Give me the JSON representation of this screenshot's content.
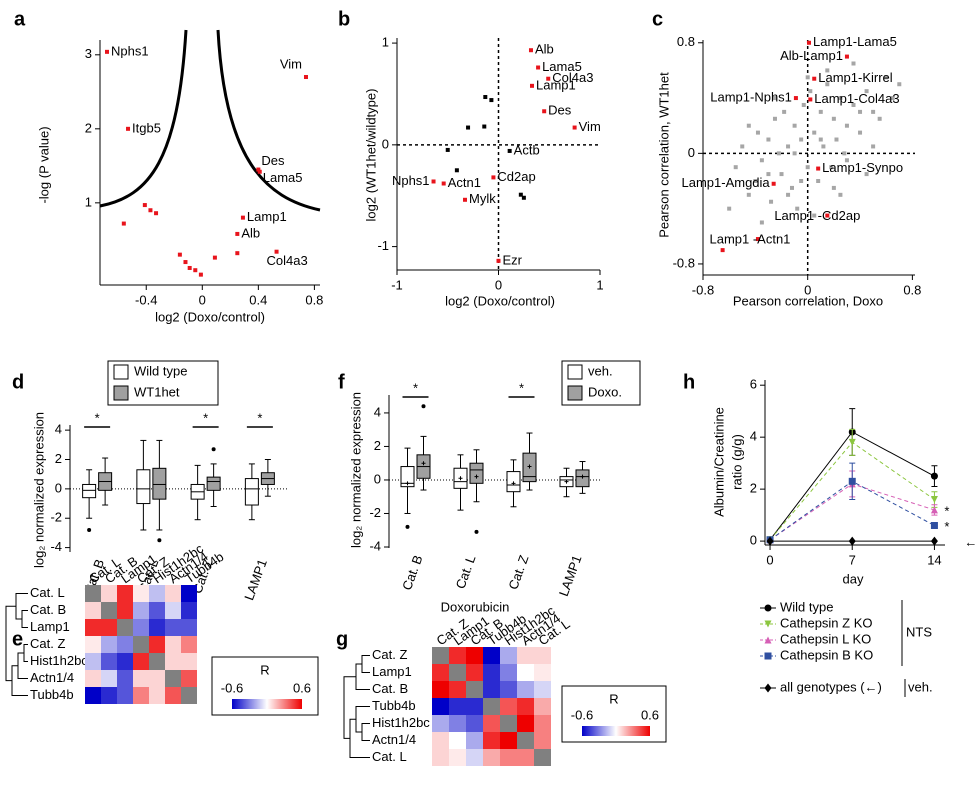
{
  "chart_data": [
    {
      "panel": "a",
      "type": "scatter",
      "xlabel": "log2 (Doxo/control)",
      "ylabel": "-log (P value)",
      "xlim": [
        -0.73,
        0.84
      ],
      "ylim": [
        -0.11,
        3.2
      ],
      "xticks": [
        -0.4,
        0,
        0.4,
        0.8
      ],
      "yticks": [
        1,
        2,
        3
      ],
      "threshold_curve": true,
      "series": [
        {
          "color": "#e8141c",
          "x": [
            -0.68,
            -0.53,
            0.74,
            0.4,
            0.41,
            0.29,
            0.25,
            0.53,
            -0.56,
            -0.41,
            -0.37,
            -0.33,
            -0.16,
            -0.12,
            -0.09,
            -0.05,
            -0.01,
            0.09,
            0.25
          ],
          "values": [
            3.04,
            2.0,
            2.7,
            1.45,
            1.42,
            0.8,
            0.58,
            0.34,
            0.72,
            0.97,
            0.9,
            0.86,
            0.3,
            0.2,
            0.12,
            0.09,
            0.03,
            0.26,
            0.32
          ],
          "labels": [
            "Nphs1",
            "Itgb5",
            "Vim",
            "Des",
            "Lama5",
            "Lamp1",
            "Alb",
            "Col4a3",
            null,
            null,
            null,
            null,
            null,
            null,
            null,
            null,
            null,
            null,
            null
          ]
        }
      ]
    },
    {
      "panel": "b",
      "type": "scatter",
      "xlabel": "log2 (Doxo/control)",
      "ylabel": "log2 (WT1het/wildtype)",
      "xlim": [
        -1,
        1
      ],
      "ylim": [
        -1.23,
        1.05
      ],
      "xticks": [
        -1,
        0,
        1
      ],
      "yticks": [
        -1,
        0,
        1
      ],
      "crosshair": true,
      "series": [
        {
          "color": "#e8141c",
          "x": [
            0.32,
            0.39,
            0.49,
            0.33,
            0.45,
            0.75,
            -0.05,
            -0.64,
            -0.54,
            -0.33,
            0
          ],
          "values": [
            0.93,
            0.76,
            0.65,
            0.58,
            0.33,
            0.17,
            -0.32,
            -0.36,
            -0.38,
            -0.54,
            -1.14
          ],
          "labels": [
            "Alb",
            "Lama5",
            "Col4a3",
            "Lamp1",
            "Des",
            "Vim",
            "Cd2ap",
            "Nphs1",
            "Actn1",
            "Mylk",
            "Ezr"
          ]
        },
        {
          "color": "#000000",
          "x": [
            0.11,
            -0.13,
            -0.07,
            -0.14,
            -0.3,
            -0.5,
            -0.41,
            0.22,
            0.25
          ],
          "values": [
            -0.06,
            0.47,
            0.44,
            0.18,
            0.17,
            -0.05,
            -0.25,
            -0.49,
            -0.52
          ],
          "labels": [
            "Actb",
            null,
            null,
            null,
            null,
            null,
            null,
            null,
            null
          ]
        }
      ]
    },
    {
      "panel": "c",
      "type": "scatter",
      "xlabel": "Pearson correlation, Doxo",
      "ylabel": "Pearson correlation, WT1het",
      "xlim": [
        -0.8,
        0.82
      ],
      "ylim": [
        -0.88,
        0.82
      ],
      "xticks": [
        -0.8,
        0,
        0.8
      ],
      "yticks": [
        -0.8,
        0,
        0.8
      ],
      "crosshair": true,
      "series": [
        {
          "color": "#a6a6a6",
          "x": [
            -0.55,
            -0.5,
            -0.45,
            -0.4,
            -0.38,
            -0.35,
            -0.3,
            -0.28,
            -0.25,
            -0.22,
            -0.2,
            -0.18,
            -0.15,
            -0.12,
            -0.1,
            -0.08,
            -0.05,
            -0.03,
            0,
            0.02,
            0.05,
            0.08,
            0.1,
            0.12,
            0.15,
            0.18,
            0.2,
            0.22,
            0.25,
            0.28,
            0.3,
            0.35,
            0.4,
            0.45,
            0.5,
            0.55,
            0.6,
            0.65,
            -0.6,
            -0.35,
            -0.15,
            0.05,
            0.25,
            0.45,
            -0.25,
            0.0,
            0.15,
            0.35,
            0.7,
            -0.45,
            -0.05,
            0.1,
            0.3,
            0.5,
            -0.3,
            -0.1,
            0.2,
            0.4
          ],
          "values": [
            -0.1,
            0.05,
            -0.3,
            -0.2,
            0.15,
            -0.05,
            0.1,
            -0.35,
            0.25,
            0.0,
            -0.15,
            0.3,
            0.05,
            -0.25,
            0.2,
            -0.4,
            0.1,
            0.35,
            -0.1,
            0.45,
            0.15,
            -0.2,
            0.3,
            0.05,
            0.5,
            -0.1,
            0.25,
            0.1,
            0.4,
            0.0,
            0.2,
            0.35,
            0.15,
            0.45,
            0.3,
            0.25,
            0.55,
            0.4,
            -0.4,
            -0.5,
            -0.3,
            -0.45,
            -0.3,
            -0.15,
            0.4,
            0.55,
            0.6,
            0.65,
            0.5,
            0.2,
            -0.2,
            0.1,
            -0.05,
            0.05,
            -0.15,
            0.0,
            -0.25,
            0.3
          ]
        },
        {
          "color": "#e8141c",
          "x": [
            0.01,
            0.3,
            0.05,
            -0.09,
            0.02,
            0.08,
            -0.26,
            0.15,
            -0.38,
            -0.65
          ],
          "values": [
            0.8,
            0.7,
            0.54,
            0.4,
            0.39,
            -0.11,
            -0.22,
            -0.45,
            -0.62,
            -0.7
          ],
          "labels": [
            "Lamp1-Lama5",
            "Alb-Lamp1",
            "Lamp1-Kirrel",
            "Lamp1-Nphs1",
            "Lamp1-Col4a3",
            "Lamp1-Synpo",
            "Lamp1-Amgdia",
            "Lamp1 -Cd2ap",
            "Lamp1 -Actn1",
            null
          ]
        }
      ]
    },
    {
      "panel": "d",
      "type": "box",
      "ylabel": "log₂ normalized expression",
      "categories": [
        "Cat. B",
        "Cat. L",
        "Cat. Z",
        "LAMP1"
      ],
      "ylim": [
        -4.3,
        4.35
      ],
      "yticks": [
        -4,
        -2,
        0,
        2,
        4
      ],
      "significance": [
        "*",
        null,
        "*",
        "*"
      ],
      "zero_line": true,
      "series": [
        {
          "name": "Wild type",
          "color": "#ffffff",
          "boxes": [
            {
              "whislo": -2.0,
              "q1": -0.6,
              "med": -0.1,
              "q3": 0.3,
              "whishi": 1.3,
              "fliers": [
                -2.8
              ]
            },
            {
              "whislo": -2.8,
              "q1": -1.0,
              "med": 0.0,
              "q3": 1.3,
              "whishi": 3.3,
              "fliers": []
            },
            {
              "whislo": -2.1,
              "q1": -0.7,
              "med": -0.2,
              "q3": 0.3,
              "whishi": 1.6,
              "fliers": []
            },
            {
              "whislo": -2.1,
              "q1": -1.1,
              "med": 0.0,
              "q3": 0.7,
              "whishi": 1.7,
              "fliers": []
            }
          ]
        },
        {
          "name": "WT1het",
          "color": "#a0a0a0",
          "boxes": [
            {
              "whislo": -1.1,
              "q1": -0.1,
              "med": 0.5,
              "q3": 1.1,
              "whishi": 2.1,
              "fliers": []
            },
            {
              "whislo": -2.8,
              "q1": -0.7,
              "med": 0.3,
              "q3": 1.4,
              "whishi": 3.3,
              "fliers": [
                -3.5
              ]
            },
            {
              "whislo": -1.2,
              "q1": -0.1,
              "med": 0.5,
              "q3": 0.8,
              "whishi": 1.7,
              "fliers": [
                2.7
              ]
            },
            {
              "whislo": -0.5,
              "q1": 0.3,
              "med": 0.7,
              "q3": 1.1,
              "whishi": 2.0,
              "fliers": []
            }
          ]
        }
      ]
    },
    {
      "panel": "e",
      "type": "heatmap",
      "row_labels": [
        "Cat. L",
        "Cat. B",
        "Lamp1",
        "Cat. Z",
        "Hist1h2bc",
        "Actn1/4",
        "Tubb4b"
      ],
      "col_labels": [
        "Cat. L",
        "Cat. B",
        "Lamp1",
        "Cat. Z",
        "Hist1h2bc",
        "Actn1/4",
        "Tubb4b"
      ],
      "matrix": [
        [
          null,
          0.1,
          0.5,
          0.05,
          -0.15,
          0.1,
          -0.6
        ],
        [
          0.1,
          null,
          0.5,
          -0.2,
          -0.4,
          -0.1,
          -0.5
        ],
        [
          0.5,
          0.5,
          null,
          -0.3,
          -0.5,
          -0.4,
          -0.4
        ],
        [
          0.05,
          -0.2,
          -0.3,
          null,
          0.5,
          0.1,
          0.3
        ],
        [
          -0.15,
          -0.4,
          -0.5,
          0.5,
          null,
          0.1,
          0.1
        ],
        [
          0.1,
          -0.1,
          -0.4,
          0.1,
          0.1,
          null,
          0.4
        ],
        [
          -0.6,
          -0.5,
          -0.4,
          0.3,
          0.1,
          0.4,
          null
        ]
      ],
      "clim": [
        -0.6,
        0.6
      ],
      "cticks": [
        -0.6,
        0.6
      ],
      "colorbar_label": "R",
      "cmap": [
        "#0000c8",
        "#ffffff",
        "#ee0000"
      ],
      "diagonal_color": "#808080"
    },
    {
      "panel": "f",
      "type": "box",
      "ylabel": "log₂ normalized expression",
      "xlabel": "Doxorubicin",
      "categories": [
        "Cat. B",
        "Cat. L",
        "Cat. Z",
        "LAMP1"
      ],
      "ylim": [
        -4.06,
        5.07
      ],
      "yticks": [
        -4,
        -2,
        0,
        2,
        4
      ],
      "significance": [
        "*",
        null,
        "*",
        null
      ],
      "zero_line": true,
      "series": [
        {
          "name": "veh.",
          "color": "#ffffff",
          "boxes": [
            {
              "whislo": -2.0,
              "q1": -0.4,
              "med": -0.2,
              "q3": 0.8,
              "whishi": 1.9,
              "fliers": [
                -2.8
              ],
              "mean": -0.2
            },
            {
              "whislo": -1.8,
              "q1": -0.5,
              "med": -0.1,
              "q3": 0.7,
              "whishi": 1.5,
              "fliers": [],
              "mean": 0.1
            },
            {
              "whislo": -1.6,
              "q1": -0.7,
              "med": -0.3,
              "q3": 0.5,
              "whishi": 1.2,
              "fliers": [],
              "mean": -0.2
            },
            {
              "whislo": -1.0,
              "q1": -0.4,
              "med": 0.0,
              "q3": 0.2,
              "whishi": 0.7,
              "fliers": [],
              "mean": -0.1
            }
          ]
        },
        {
          "name": "Doxo.",
          "color": "#a0a0a0",
          "boxes": [
            {
              "whislo": -0.6,
              "q1": 0.1,
              "med": 0.8,
              "q3": 1.5,
              "whishi": 2.6,
              "fliers": [
                4.4
              ],
              "mean": 1.0
            },
            {
              "whislo": -1.3,
              "q1": -0.2,
              "med": 0.6,
              "q3": 1.0,
              "whishi": 1.8,
              "fliers": [
                -3.1
              ],
              "mean": 0.2
            },
            {
              "whislo": -0.6,
              "q1": -0.1,
              "med": 0.2,
              "q3": 1.6,
              "whishi": 2.8,
              "fliers": [],
              "mean": 0.8
            },
            {
              "whislo": -0.8,
              "q1": -0.4,
              "med": 0.2,
              "q3": 0.6,
              "whishi": 1.1,
              "fliers": [],
              "mean": 0.2
            }
          ]
        }
      ]
    },
    {
      "panel": "g",
      "type": "heatmap",
      "row_labels": [
        "Cat. Z",
        "Lamp1",
        "Cat. B",
        "Tubb4b",
        "Hist1h2bc",
        "Actn1/4",
        "Cat. L"
      ],
      "col_labels": [
        "Cat. Z",
        "Lamp1",
        "Cat. B",
        "Tubb4b",
        "Hist1h2bc",
        "Actn1/4",
        "Cat. L"
      ],
      "matrix": [
        [
          null,
          0.5,
          0.6,
          -0.6,
          -0.2,
          0.1,
          0.1
        ],
        [
          0.5,
          null,
          0.5,
          -0.5,
          -0.3,
          0.0,
          0.05
        ],
        [
          0.6,
          0.5,
          null,
          -0.5,
          -0.4,
          -0.2,
          -0.1
        ],
        [
          -0.6,
          -0.5,
          -0.5,
          null,
          0.4,
          0.5,
          0.2
        ],
        [
          -0.2,
          -0.3,
          -0.4,
          0.4,
          null,
          0.6,
          0.3
        ],
        [
          0.1,
          0.0,
          -0.2,
          0.5,
          0.6,
          null,
          0.3
        ],
        [
          0.1,
          0.05,
          -0.1,
          0.2,
          0.3,
          0.3,
          null
        ]
      ],
      "clim": [
        -0.6,
        0.6
      ],
      "cticks": [
        -0.6,
        0.6
      ],
      "colorbar_label": "R",
      "cmap": [
        "#0000c8",
        "#ffffff",
        "#ee0000"
      ],
      "diagonal_color": "#808080"
    },
    {
      "panel": "h",
      "type": "line",
      "xlabel": "day",
      "ylabel": [
        "Albumin/Creatinine",
        "ratio (g/g)"
      ],
      "x": [
        0,
        7,
        14
      ],
      "xlim": [
        -0.43,
        14.9
      ],
      "ylim": [
        -0.15,
        6.2
      ],
      "xticks": [
        0,
        7,
        14
      ],
      "yticks": [
        0,
        2,
        4,
        6
      ],
      "legend_group_label": "NTS",
      "series": [
        {
          "name": "Wild type",
          "color": "#000000",
          "marker": "circle",
          "dashed": false,
          "values": [
            0.05,
            4.2,
            2.5
          ],
          "errors": [
            0.05,
            0.9,
            0.4
          ]
        },
        {
          "name": "Cathepsin Z KO",
          "color": "#8cc63f",
          "marker": "triangle-down",
          "dashed": true,
          "values": [
            0.05,
            3.8,
            1.6
          ],
          "errors": [
            0,
            0.5,
            0.3
          ]
        },
        {
          "name": "Cathepsin L KO",
          "color": "#d65fb5",
          "marker": "triangle-up",
          "dashed": true,
          "values": [
            0.05,
            2.2,
            1.2
          ],
          "errors": [
            0,
            0.5,
            0.2
          ],
          "end_label": "*"
        },
        {
          "name": "Cathepsin B KO",
          "color": "#2f4fa0",
          "marker": "square",
          "dashed": true,
          "values": [
            0.05,
            2.3,
            0.6
          ],
          "errors": [
            0,
            0.7,
            0.1
          ],
          "end_label": "*"
        },
        {
          "name": "all genotypes (←)",
          "group_label": "veh.",
          "color": "#000000",
          "marker": "diamond",
          "dashed": false,
          "values": [
            0,
            0,
            0
          ],
          "end_label": "←"
        }
      ]
    }
  ]
}
